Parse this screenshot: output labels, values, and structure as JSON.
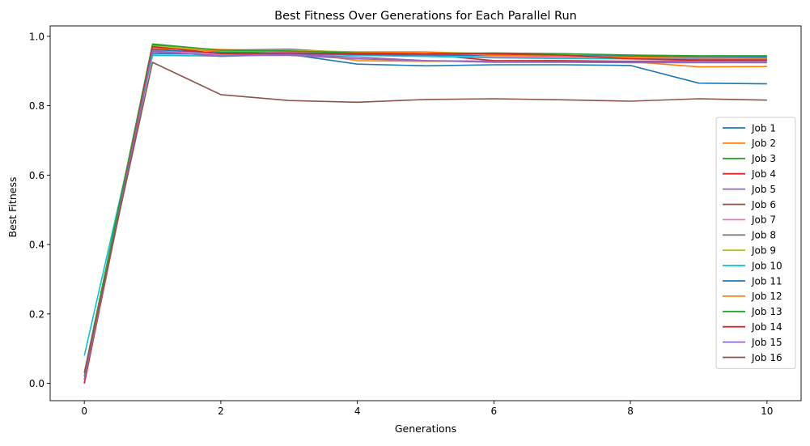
{
  "chart_data": {
    "type": "line",
    "title": "Best Fitness Over Generations for Each Parallel Run",
    "xlabel": "Generations",
    "ylabel": "Best Fitness",
    "xlim": [
      -0.5,
      10.5
    ],
    "ylim": [
      -0.05,
      1.03
    ],
    "xticks": [
      0,
      2,
      4,
      6,
      8,
      10
    ],
    "xtick_labels": [
      "0",
      "2",
      "4",
      "6",
      "8",
      "10"
    ],
    "yticks": [
      0.0,
      0.2,
      0.4,
      0.6,
      0.8,
      1.0
    ],
    "ytick_labels": [
      "0.0",
      "0.2",
      "0.4",
      "0.6",
      "0.8",
      "1.0"
    ],
    "grid": false,
    "legend_position": "lower-right",
    "x": [
      0,
      1,
      2,
      3,
      4,
      5,
      6,
      7,
      8,
      9,
      10
    ],
    "series": [
      {
        "name": "Job 1",
        "color": "#1f77b4",
        "values": [
          0.02,
          0.95,
          0.948,
          0.948,
          0.92,
          0.915,
          0.918,
          0.918,
          0.916,
          0.865,
          0.863
        ]
      },
      {
        "name": "Job 2",
        "color": "#ff7f0e",
        "values": [
          0.0,
          0.97,
          0.962,
          0.958,
          0.93,
          0.928,
          0.928,
          0.928,
          0.927,
          0.912,
          0.913
        ]
      },
      {
        "name": "Job 3",
        "color": "#2ca02c",
        "values": [
          0.01,
          0.975,
          0.955,
          0.953,
          0.95,
          0.948,
          0.95,
          0.948,
          0.945,
          0.943,
          0.942
        ]
      },
      {
        "name": "Job 4",
        "color": "#d62728",
        "values": [
          0.0,
          0.965,
          0.945,
          0.95,
          0.948,
          0.948,
          0.93,
          0.93,
          0.928,
          0.93,
          0.93
        ]
      },
      {
        "name": "Job 5",
        "color": "#9467bd",
        "values": [
          0.02,
          0.955,
          0.945,
          0.945,
          0.935,
          0.93,
          0.925,
          0.925,
          0.924,
          0.924,
          0.924
        ]
      },
      {
        "name": "Job 6",
        "color": "#8c564b",
        "values": [
          0.0,
          0.958,
          0.95,
          0.952,
          0.95,
          0.948,
          0.948,
          0.948,
          0.935,
          0.935,
          0.935
        ]
      },
      {
        "name": "Job 7",
        "color": "#e377c2",
        "values": [
          0.01,
          0.96,
          0.948,
          0.955,
          0.946,
          0.946,
          0.94,
          0.94,
          0.938,
          0.935,
          0.935
        ]
      },
      {
        "name": "Job 8",
        "color": "#7f7f7f",
        "values": [
          0.02,
          0.968,
          0.96,
          0.963,
          0.952,
          0.95,
          0.945,
          0.943,
          0.94,
          0.938,
          0.937
        ]
      },
      {
        "name": "Job 9",
        "color": "#bcbd22",
        "values": [
          0.0,
          0.972,
          0.958,
          0.96,
          0.955,
          0.955,
          0.95,
          0.948,
          0.946,
          0.943,
          0.943
        ]
      },
      {
        "name": "Job 10",
        "color": "#17becf",
        "values": [
          0.08,
          0.945,
          0.943,
          0.95,
          0.945,
          0.942,
          0.938,
          0.936,
          0.935,
          0.933,
          0.932
        ]
      },
      {
        "name": "Job 11",
        "color": "#1f77b4",
        "values": [
          0.01,
          0.962,
          0.952,
          0.95,
          0.948,
          0.946,
          0.945,
          0.944,
          0.943,
          0.94,
          0.94
        ]
      },
      {
        "name": "Job 12",
        "color": "#ff7f0e",
        "values": [
          0.0,
          0.966,
          0.958,
          0.957,
          0.955,
          0.955,
          0.945,
          0.943,
          0.94,
          0.938,
          0.937
        ]
      },
      {
        "name": "Job 13",
        "color": "#2ca02c",
        "values": [
          0.03,
          0.978,
          0.96,
          0.958,
          0.952,
          0.95,
          0.952,
          0.95,
          0.946,
          0.944,
          0.944
        ]
      },
      {
        "name": "Job 14",
        "color": "#d62728",
        "values": [
          0.0,
          0.97,
          0.95,
          0.952,
          0.95,
          0.95,
          0.95,
          0.946,
          0.935,
          0.932,
          0.932
        ]
      },
      {
        "name": "Job 15",
        "color": "#9467bd",
        "values": [
          0.01,
          0.958,
          0.942,
          0.948,
          0.94,
          0.93,
          0.928,
          0.926,
          0.926,
          0.928,
          0.928
        ]
      },
      {
        "name": "Job 16",
        "color": "#8c564b",
        "values": [
          0.03,
          0.925,
          0.832,
          0.815,
          0.81,
          0.818,
          0.82,
          0.817,
          0.813,
          0.82,
          0.816
        ]
      }
    ]
  }
}
